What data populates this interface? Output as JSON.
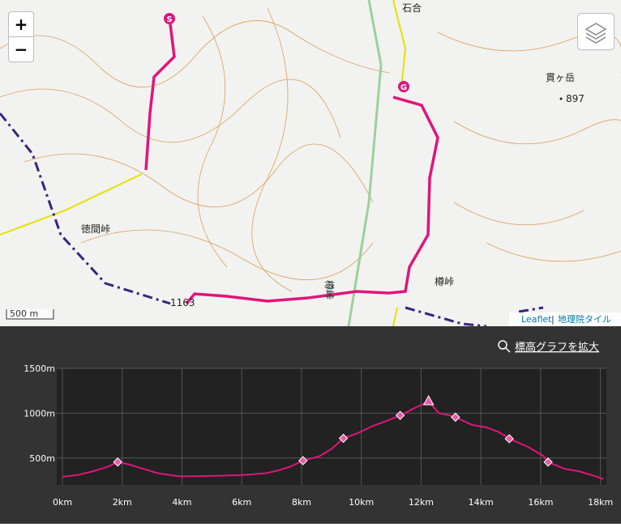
{
  "map": {
    "zoom_in": "+",
    "zoom_out": "−",
    "scale": "500 m",
    "attribution": {
      "leaflet": "Leaflet",
      "separator": "|",
      "tiles": "地理院タイル"
    },
    "labels": [
      {
        "text": "石合"
      },
      {
        "text": "貫ヶ岳"
      },
      {
        "text": "897"
      },
      {
        "text": "徳間峠"
      },
      {
        "text": "樽峠"
      },
      {
        "text": "樽峠"
      },
      {
        "text": "1163"
      }
    ],
    "start": "S",
    "goal": "G"
  },
  "chart_data": {
    "type": "line",
    "button": "標高グラフを拡大",
    "xlim": [
      0,
      18.2
    ],
    "ylim": [
      200,
      1500
    ],
    "xticks": [
      {
        "value": 0,
        "label": "0km"
      },
      {
        "value": 2,
        "label": "2km"
      },
      {
        "value": 4,
        "label": "4km"
      },
      {
        "value": 6,
        "label": "6km"
      },
      {
        "value": 8,
        "label": "8km"
      },
      {
        "value": 10,
        "label": "10km"
      },
      {
        "value": 12,
        "label": "12km"
      },
      {
        "value": 14,
        "label": "14km"
      },
      {
        "value": 16,
        "label": "16km"
      },
      {
        "value": 18,
        "label": "18km"
      }
    ],
    "yticks": [
      {
        "value": 500,
        "label": "500m"
      },
      {
        "value": 1000,
        "label": "1000m"
      },
      {
        "value": 1500,
        "label": "1500m"
      }
    ],
    "grid": true,
    "series": [
      {
        "color": "#e0157a",
        "x": [
          0,
          0.5,
          1,
          1.5,
          1.85,
          2.2,
          2.7,
          3.2,
          3.8,
          4,
          5,
          6,
          6.8,
          7.2,
          7.6,
          8.05,
          8.6,
          9,
          9.4,
          9.9,
          10.4,
          10.9,
          11.3,
          11.8,
          12.25,
          12.6,
          12.9,
          13.15,
          13.7,
          14.2,
          14.6,
          14.95,
          15.6,
          16.1,
          16.25,
          16.8,
          17.3,
          17.8,
          18.1
        ],
        "values": [
          290,
          310,
          350,
          400,
          455,
          430,
          380,
          330,
          300,
          295,
          300,
          310,
          330,
          360,
          400,
          470,
          520,
          600,
          720,
          780,
          860,
          920,
          975,
          1060,
          1130,
          1000,
          980,
          955,
          870,
          840,
          790,
          715,
          620,
          520,
          455,
          380,
          350,
          300,
          265
        ]
      },
      {
        "color": "#e85aa8",
        "x": [
          1.85,
          8.05,
          9.4,
          11.3,
          13.15,
          14.95,
          16.25
        ],
        "values": [
          455,
          470,
          720,
          975,
          955,
          715,
          455
        ]
      },
      {
        "color": "#e85aa8",
        "x": [
          12.25
        ],
        "values": [
          1130
        ]
      }
    ]
  }
}
